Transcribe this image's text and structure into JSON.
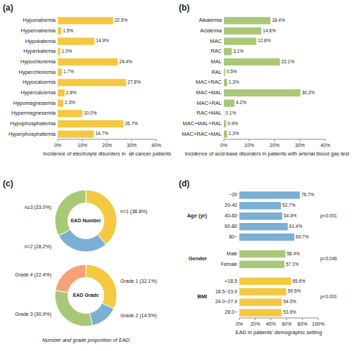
{
  "chart_data": [
    {
      "type": "bar",
      "orientation": "horizontal",
      "title": "(a)",
      "categories": [
        "Hyponatremia",
        "Hypernatremia",
        "Hypokalemia",
        "Hyperkalemia",
        "Hypochloremia",
        "Hyperchloremia",
        "Hypocalcemia",
        "Hypercalcemia",
        "Hypomagnesemia",
        "Hypermagnesemia",
        "Hypophosphatemia",
        "Hyperphosphatemia"
      ],
      "values": [
        22.5,
        1.5,
        14.9,
        1.0,
        24.4,
        1.7,
        27.8,
        2.8,
        2.3,
        10.0,
        26.7,
        14.7
      ],
      "value_labels": [
        "22.5%",
        "1.5%",
        "14.9%",
        "1.0%",
        "24.4%",
        "1.7%",
        "27.8%",
        "2.8%",
        "2.3%",
        "10.0%",
        "26.7%",
        "14.7%"
      ],
      "data_labels": true,
      "color": "#F5C842",
      "xlabel": "Incidence of electrolyte disorders in  all cancer patients",
      "xlim": [
        0,
        40
      ],
      "xticks": [
        {
          "value": 0,
          "label": "0%"
        },
        {
          "value": 10,
          "label": "10%"
        },
        {
          "value": 20,
          "label": "20%"
        },
        {
          "value": 30,
          "label": "30%"
        },
        {
          "value": 40,
          "label": "40%"
        }
      ]
    },
    {
      "type": "bar",
      "orientation": "horizontal",
      "title": "(b)",
      "categories": [
        "Alkalemia",
        "Acidemia",
        "MAC",
        "RAC",
        "MAL",
        "RAL",
        "MAC+RAC",
        "MAC+MAL",
        "MAC+RAL",
        "RAC+MAL",
        "MAC+MAL+RAL",
        "MAC+RAC+MAL"
      ],
      "values": [
        18.4,
        14.8,
        12.8,
        3.1,
        22.1,
        0.5,
        1.3,
        30.2,
        4.2,
        0.1,
        0.9,
        1.3
      ],
      "value_labels": [
        "18.4%",
        "14.8%",
        "12.8%",
        "3.1%",
        "22.1%",
        "0.5%",
        "1.3%",
        "30.2%",
        "4.2%",
        "0.1%",
        "0.9%",
        "1.3%"
      ],
      "data_labels": true,
      "color": "#A8C878",
      "xlabel": "Incidence of acid-base disorders in patients with arterial blood gas test",
      "xlim": [
        0,
        40
      ],
      "xticks": [
        {
          "value": 0,
          "label": "0%"
        },
        {
          "value": 10,
          "label": "10%"
        },
        {
          "value": 20,
          "label": "20%"
        },
        {
          "value": 30,
          "label": "30%"
        },
        {
          "value": 40,
          "label": "40%"
        }
      ]
    },
    {
      "type": "pie",
      "title": "EAD Number",
      "categories": [
        "n=1 (38.8%)",
        "n=2 (28.2%)",
        "n≥3 (33.0%)"
      ],
      "values": [
        38.8,
        28.2,
        33.0
      ],
      "colors": [
        "#F5C842",
        "#7BAFD4",
        "#A8C878"
      ],
      "annotations": [
        "(c)"
      ]
    },
    {
      "type": "pie",
      "title": "EAD Grade",
      "categories": [
        "Grade 1 (32.1%)",
        "Grade 2 (14.5%)",
        "Grade 3 (30.9%)",
        "Grade 4 (22.4%)"
      ],
      "values": [
        32.1,
        14.5,
        30.9,
        22.4
      ],
      "colors": [
        "#F5C842",
        "#7BAFD4",
        "#A8C878",
        "#F4A27A"
      ],
      "annotations": [
        "Number and grade proportion of EAD"
      ]
    },
    {
      "type": "bar",
      "orientation": "horizontal",
      "title": "(d)",
      "data_labels": true,
      "series": [
        {
          "name": "Age (yr)",
          "color": "#7BAFD4",
          "annotations": [
            "p<0.001"
          ],
          "categories": [
            "~20",
            "20-40",
            "40-60",
            "60-80",
            "80~"
          ],
          "values": [
            76.7,
            52.7,
            54.4,
            61.4,
            69.7
          ],
          "value_labels": [
            "76.7%",
            "52.7%",
            "54.4%",
            "61.4%",
            "69.7%"
          ]
        },
        {
          "name": "Gender",
          "color": "#A8C878",
          "annotations": [
            "p=0.046"
          ],
          "categories": [
            "Male",
            "Female"
          ],
          "values": [
            58.4,
            57.1
          ],
          "value_labels": [
            "58.4%",
            "57.1%"
          ]
        },
        {
          "name": "BMI",
          "color": "#F5C842",
          "annotations": [
            "p<0.001"
          ],
          "categories": [
            "<18.5",
            "18.5~23.9",
            "24.0~27.9",
            "28.0~"
          ],
          "values": [
            65.6,
            59.5,
            54.0,
            53.9
          ],
          "value_labels": [
            "65.6%",
            "59.5%",
            "54.0%",
            "53.9%"
          ]
        }
      ],
      "xlabel": "EAD in patients' demographic setting",
      "xlim": [
        0,
        100
      ],
      "xticks": [
        {
          "value": 0,
          "label": "0%"
        },
        {
          "value": 20,
          "label": "20%"
        },
        {
          "value": 40,
          "label": "40%"
        },
        {
          "value": 60,
          "label": "60%"
        },
        {
          "value": 80,
          "label": "80%"
        },
        {
          "value": 100,
          "label": "100%"
        }
      ]
    }
  ]
}
